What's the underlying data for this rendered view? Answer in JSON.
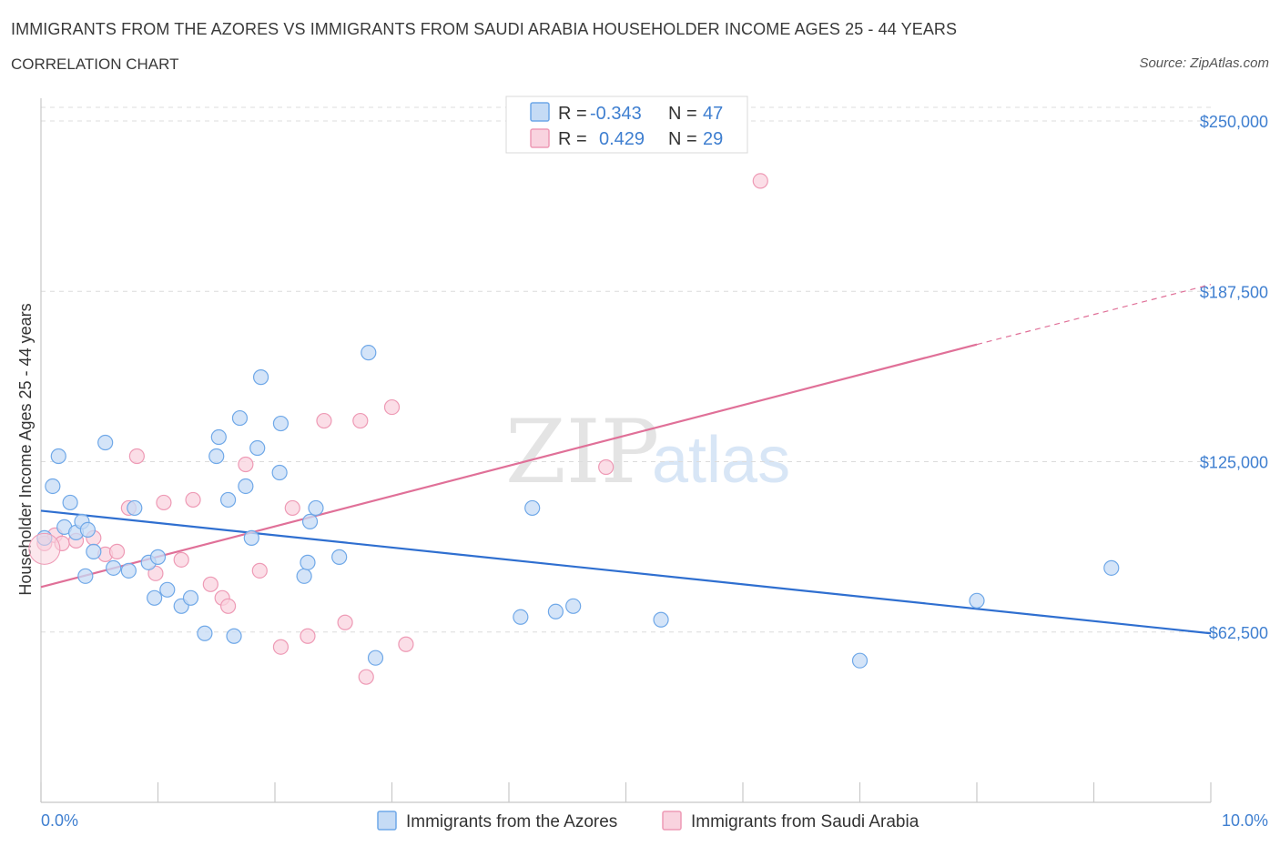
{
  "header": {
    "title": "IMMIGRANTS FROM THE AZORES VS IMMIGRANTS FROM SAUDI ARABIA HOUSEHOLDER INCOME AGES 25 - 44 YEARS",
    "subtitle": "CORRELATION CHART",
    "source": "Source: ZipAtlas.com"
  },
  "colors": {
    "blue": "#6fa8e8",
    "blue_fill": "#c5dbf5",
    "blue_line": "#2f6fd0",
    "pink": "#ee9ab5",
    "pink_fill": "#f9d3df",
    "pink_line": "#e07098",
    "tick_text": "#3f7fd0",
    "grid": "#dcdcdc"
  },
  "legend": {
    "rows": [
      {
        "r_label": "R =",
        "r_value": "-0.343",
        "n_label": "N =",
        "n_value": "47"
      },
      {
        "r_label": "R =",
        "r_value": "0.429",
        "n_label": "N =",
        "n_value": "29"
      }
    ]
  },
  "watermark": {
    "zip": "ZIP",
    "atlas": "atlas"
  },
  "chart_data": {
    "type": "scatter",
    "title": "IMMIGRANTS FROM THE AZORES VS IMMIGRANTS FROM SAUDI ARABIA HOUSEHOLDER INCOME AGES 25 - 44 YEARS",
    "xlabel": "",
    "ylabel": "Householder Income Ages 25 - 44 years",
    "xlim": [
      0,
      10
    ],
    "ylim": [
      0,
      250000
    ],
    "x_tick_labels": [
      "0.0%",
      "10.0%"
    ],
    "y_ticks": [
      62500,
      125000,
      187500,
      250000
    ],
    "y_tick_labels": [
      "$62,500",
      "$125,000",
      "$187,500",
      "$250,000"
    ],
    "grid": true,
    "legend_position": "top-center",
    "series": [
      {
        "name": "Immigrants from the Azores",
        "color": "#6fa8e8",
        "trend": {
          "x": [
            0.0,
            10.0
          ],
          "y": [
            107000,
            62000
          ]
        },
        "points": [
          [
            0.03,
            97000
          ],
          [
            0.15,
            127000
          ],
          [
            0.1,
            116000
          ],
          [
            0.25,
            110000
          ],
          [
            0.2,
            101000
          ],
          [
            0.3,
            99000
          ],
          [
            0.35,
            103000
          ],
          [
            0.4,
            100000
          ],
          [
            0.45,
            92000
          ],
          [
            0.38,
            83000
          ],
          [
            0.55,
            132000
          ],
          [
            0.62,
            86000
          ],
          [
            0.75,
            85000
          ],
          [
            0.8,
            108000
          ],
          [
            0.92,
            88000
          ],
          [
            0.97,
            75000
          ],
          [
            1.0,
            90000
          ],
          [
            1.08,
            78000
          ],
          [
            1.2,
            72000
          ],
          [
            1.28,
            75000
          ],
          [
            1.4,
            62000
          ],
          [
            1.5,
            127000
          ],
          [
            1.52,
            134000
          ],
          [
            1.6,
            111000
          ],
          [
            1.65,
            61000
          ],
          [
            1.7,
            141000
          ],
          [
            1.75,
            116000
          ],
          [
            1.8,
            97000
          ],
          [
            1.85,
            130000
          ],
          [
            1.88,
            156000
          ],
          [
            2.04,
            121000
          ],
          [
            2.05,
            139000
          ],
          [
            2.25,
            83000
          ],
          [
            2.28,
            88000
          ],
          [
            2.3,
            103000
          ],
          [
            2.35,
            108000
          ],
          [
            2.55,
            90000
          ],
          [
            2.8,
            165000
          ],
          [
            2.86,
            53000
          ],
          [
            4.2,
            108000
          ],
          [
            4.1,
            68000
          ],
          [
            4.4,
            70000
          ],
          [
            4.55,
            72000
          ],
          [
            5.3,
            67000
          ],
          [
            7.0,
            52000
          ],
          [
            8.0,
            74000
          ],
          [
            9.15,
            86000
          ]
        ]
      },
      {
        "name": "Immigrants from Saudi Arabia",
        "color": "#ee9ab5",
        "trend": {
          "x": [
            0.0,
            8.0
          ],
          "y": [
            79000,
            168000
          ]
        },
        "trend_dashed": {
          "x": [
            8.0,
            10.0
          ],
          "y": [
            168000,
            190000
          ]
        },
        "points": [
          [
            0.03,
            95000
          ],
          [
            0.12,
            98000
          ],
          [
            0.18,
            95000
          ],
          [
            0.3,
            96000
          ],
          [
            0.45,
            97000
          ],
          [
            0.55,
            91000
          ],
          [
            0.65,
            92000
          ],
          [
            0.75,
            108000
          ],
          [
            0.82,
            127000
          ],
          [
            0.98,
            84000
          ],
          [
            1.05,
            110000
          ],
          [
            1.2,
            89000
          ],
          [
            1.3,
            111000
          ],
          [
            1.45,
            80000
          ],
          [
            1.55,
            75000
          ],
          [
            1.6,
            72000
          ],
          [
            1.75,
            124000
          ],
          [
            1.87,
            85000
          ],
          [
            2.05,
            57000
          ],
          [
            2.15,
            108000
          ],
          [
            2.28,
            61000
          ],
          [
            2.42,
            140000
          ],
          [
            2.6,
            66000
          ],
          [
            2.73,
            140000
          ],
          [
            2.78,
            46000
          ],
          [
            3.0,
            145000
          ],
          [
            3.12,
            58000
          ],
          [
            4.83,
            123000
          ],
          [
            6.15,
            228000
          ]
        ]
      }
    ]
  },
  "bottom_legend": {
    "items": [
      {
        "label": "Immigrants from the Azores"
      },
      {
        "label": "Immigrants from Saudi Arabia"
      }
    ]
  }
}
